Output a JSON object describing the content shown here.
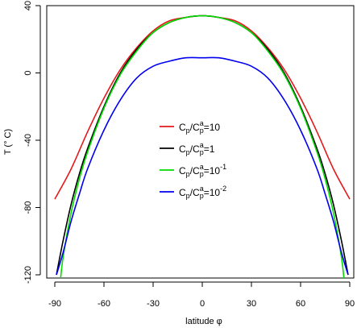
{
  "chart_data": {
    "type": "line",
    "xlabel": "latitude φ",
    "ylabel": "T (° C)",
    "xlim": [
      -90,
      90
    ],
    "ylim": [
      -120,
      40
    ],
    "xticks": [
      "-90",
      "-60",
      "-30",
      "0",
      "30",
      "60",
      "90"
    ],
    "xtick_values": [
      -90,
      -60,
      -30,
      0,
      30,
      60,
      90
    ],
    "yticks": [
      "-120",
      "-80",
      "-40",
      "0",
      "40"
    ],
    "ytick_values": [
      -120,
      -80,
      -40,
      0,
      40
    ],
    "grid": false,
    "legend_position": "center",
    "series": [
      {
        "legend": {
          "c1": "C",
          "s1": "p",
          "slash": "/",
          "c2": "C",
          "sup2": "a",
          "sub2": "p",
          "eq": "=10",
          "exp": ""
        },
        "color": "#e31a1c",
        "x": [
          -90,
          -80,
          -70,
          -60,
          -50,
          -40,
          -30,
          -20,
          -10,
          0,
          10,
          20,
          30,
          40,
          50,
          60,
          70,
          80,
          90
        ],
        "y": [
          -75,
          -57,
          -35,
          -15,
          2,
          15,
          25,
          31,
          33,
          34,
          33,
          31,
          25,
          15,
          2,
          -15,
          -35,
          -57,
          -75
        ]
      },
      {
        "legend": {
          "c1": "C",
          "s1": "p",
          "slash": "/",
          "c2": "C",
          "sup2": "a",
          "sub2": "p",
          "eq": "=1",
          "exp": ""
        },
        "color": "#000000",
        "x": [
          -89,
          -85,
          -80,
          -75,
          -70,
          -60,
          -50,
          -40,
          -30,
          -20,
          -10,
          0,
          10,
          20,
          30,
          40,
          50,
          60,
          70,
          75,
          80,
          85,
          89
        ],
        "y": [
          -120,
          -100,
          -78,
          -60,
          -45,
          -20,
          0,
          14,
          24,
          30,
          33,
          34,
          33,
          30,
          24,
          14,
          0,
          -20,
          -45,
          -60,
          -78,
          -100,
          -120
        ]
      },
      {
        "legend": {
          "c1": "C",
          "s1": "p",
          "slash": "/",
          "c2": "C",
          "sup2": "a",
          "sub2": "p",
          "eq": "=10",
          "exp": "-1"
        },
        "color": "#00dd00",
        "x": [
          -87,
          -85,
          -80,
          -75,
          -70,
          -60,
          -50,
          -40,
          -30,
          -20,
          -10,
          0,
          10,
          20,
          30,
          40,
          50,
          60,
          70,
          75,
          80,
          85,
          87
        ],
        "y": [
          -128,
          -110,
          -83,
          -63,
          -47,
          -21,
          -1,
          13,
          24,
          30,
          33,
          34,
          33,
          30,
          24,
          13,
          -1,
          -21,
          -47,
          -63,
          -83,
          -110,
          -128
        ]
      },
      {
        "legend": {
          "c1": "C",
          "s1": "p",
          "slash": "/",
          "c2": "C",
          "sup2": "a",
          "sub2": "p",
          "eq": "=10",
          "exp": "-2"
        },
        "color": "#0000ee",
        "x": [
          -89,
          -85,
          -80,
          -75,
          -70,
          -60,
          -50,
          -40,
          -30,
          -20,
          -10,
          0,
          10,
          20,
          30,
          40,
          50,
          60,
          70,
          75,
          80,
          85,
          89
        ],
        "y": [
          -120,
          -107,
          -88,
          -72,
          -57,
          -34,
          -16,
          -3,
          4,
          7,
          9,
          9,
          9,
          7,
          4,
          -3,
          -16,
          -34,
          -57,
          -72,
          -88,
          -107,
          -120
        ]
      }
    ]
  }
}
